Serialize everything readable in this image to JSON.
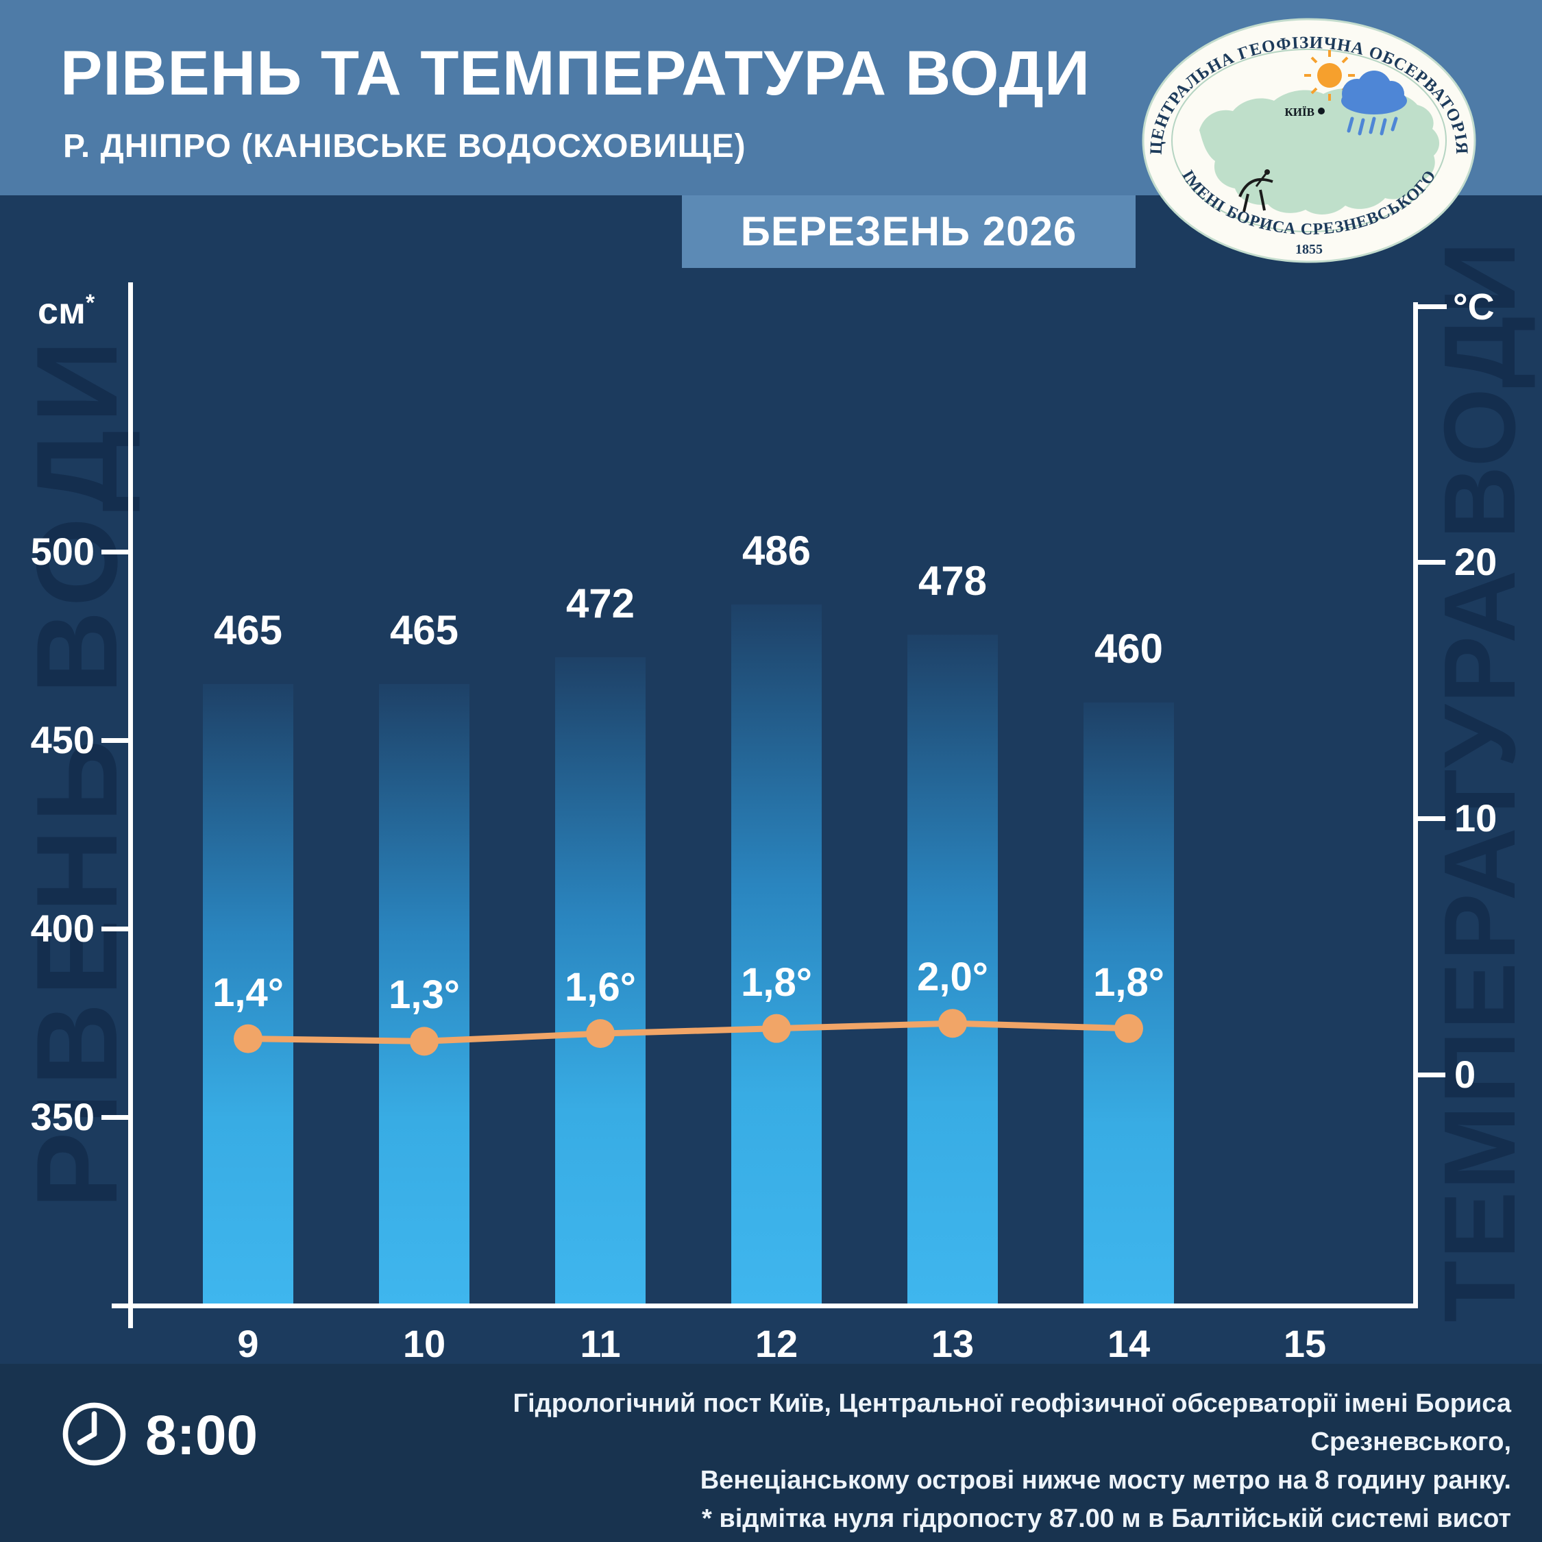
{
  "header": {
    "title": "РІВЕНЬ ТА ТЕМПЕРАТУРА ВОДИ",
    "subtitle": "Р. ДНІПРО (КАНІВСЬКЕ ВОДОСХОВИЩЕ)",
    "period": "БЕРЕЗЕНЬ 2026"
  },
  "logo": {
    "ring_top": "ЦЕНТРАЛЬНА ГЕОФІЗИЧНА ОБСЕРВАТОРІЯ",
    "ring_bottom": "ІМЕНІ БОРИСА СРЕЗНЕВСЬКОГО",
    "year": "1855",
    "city": "КИЇВ"
  },
  "watermarks": {
    "left": "РІВЕНЬ ВОДИ",
    "right": "ТЕМПЕРАТУРА ВОДИ"
  },
  "axes": {
    "left_unit": "см",
    "left_unit_note": "*",
    "right_unit": "°С"
  },
  "chart_data": {
    "type": "bar",
    "title": "РІВЕНЬ ТА ТЕМПЕРАТУРА ВОДИ — Р. ДНІПРО (КАНІВСЬКЕ ВОДОСХОВИЩЕ), БЕРЕЗЕНЬ 2026",
    "categories": [
      "9",
      "10",
      "11",
      "12",
      "13",
      "14"
    ],
    "x_axis_ticks": [
      "9",
      "10",
      "11",
      "12",
      "13",
      "14",
      "15"
    ],
    "series": [
      {
        "name": "Рівень води, см",
        "type": "bar",
        "axis": "left",
        "values": [
          465,
          465,
          472,
          486,
          478,
          460
        ]
      },
      {
        "name": "Температура води, °С",
        "type": "line",
        "axis": "right",
        "values": [
          1.4,
          1.3,
          1.6,
          1.8,
          2.0,
          1.8
        ],
        "point_labels": [
          "1,4°",
          "1,3°",
          "1,6°",
          "1,8°",
          "2,0°",
          "1,8°"
        ]
      }
    ],
    "left_axis": {
      "unit": "см*",
      "ticks": [
        500,
        450,
        400,
        350
      ],
      "range": [
        300,
        570
      ]
    },
    "right_axis": {
      "unit": "°С",
      "ticks": [
        20,
        10,
        0
      ],
      "range": [
        -9,
        30
      ]
    },
    "grid": false,
    "legend": "none"
  },
  "footer": {
    "time": "8:00",
    "lines": [
      "Гідрологічний пост Київ, Центральної геофізичної обсерваторії імені Бориса Срезневського,",
      "Венеціанському острові нижче мосту метро  на 8 годину ранку.",
      "* відмітка нуля гідропосту 87.00 м в Балтійській системі висот"
    ]
  },
  "colors": {
    "header_bg": "#4e7ba7",
    "month_bg": "#5c8ab5",
    "page_bg": "#1c3b5e",
    "footer_bg": "#18334f",
    "bar_bottom": "#3fb6ee",
    "bar_top": "#1e4167",
    "line": "#f1a567",
    "watermark": "#142e4e"
  }
}
